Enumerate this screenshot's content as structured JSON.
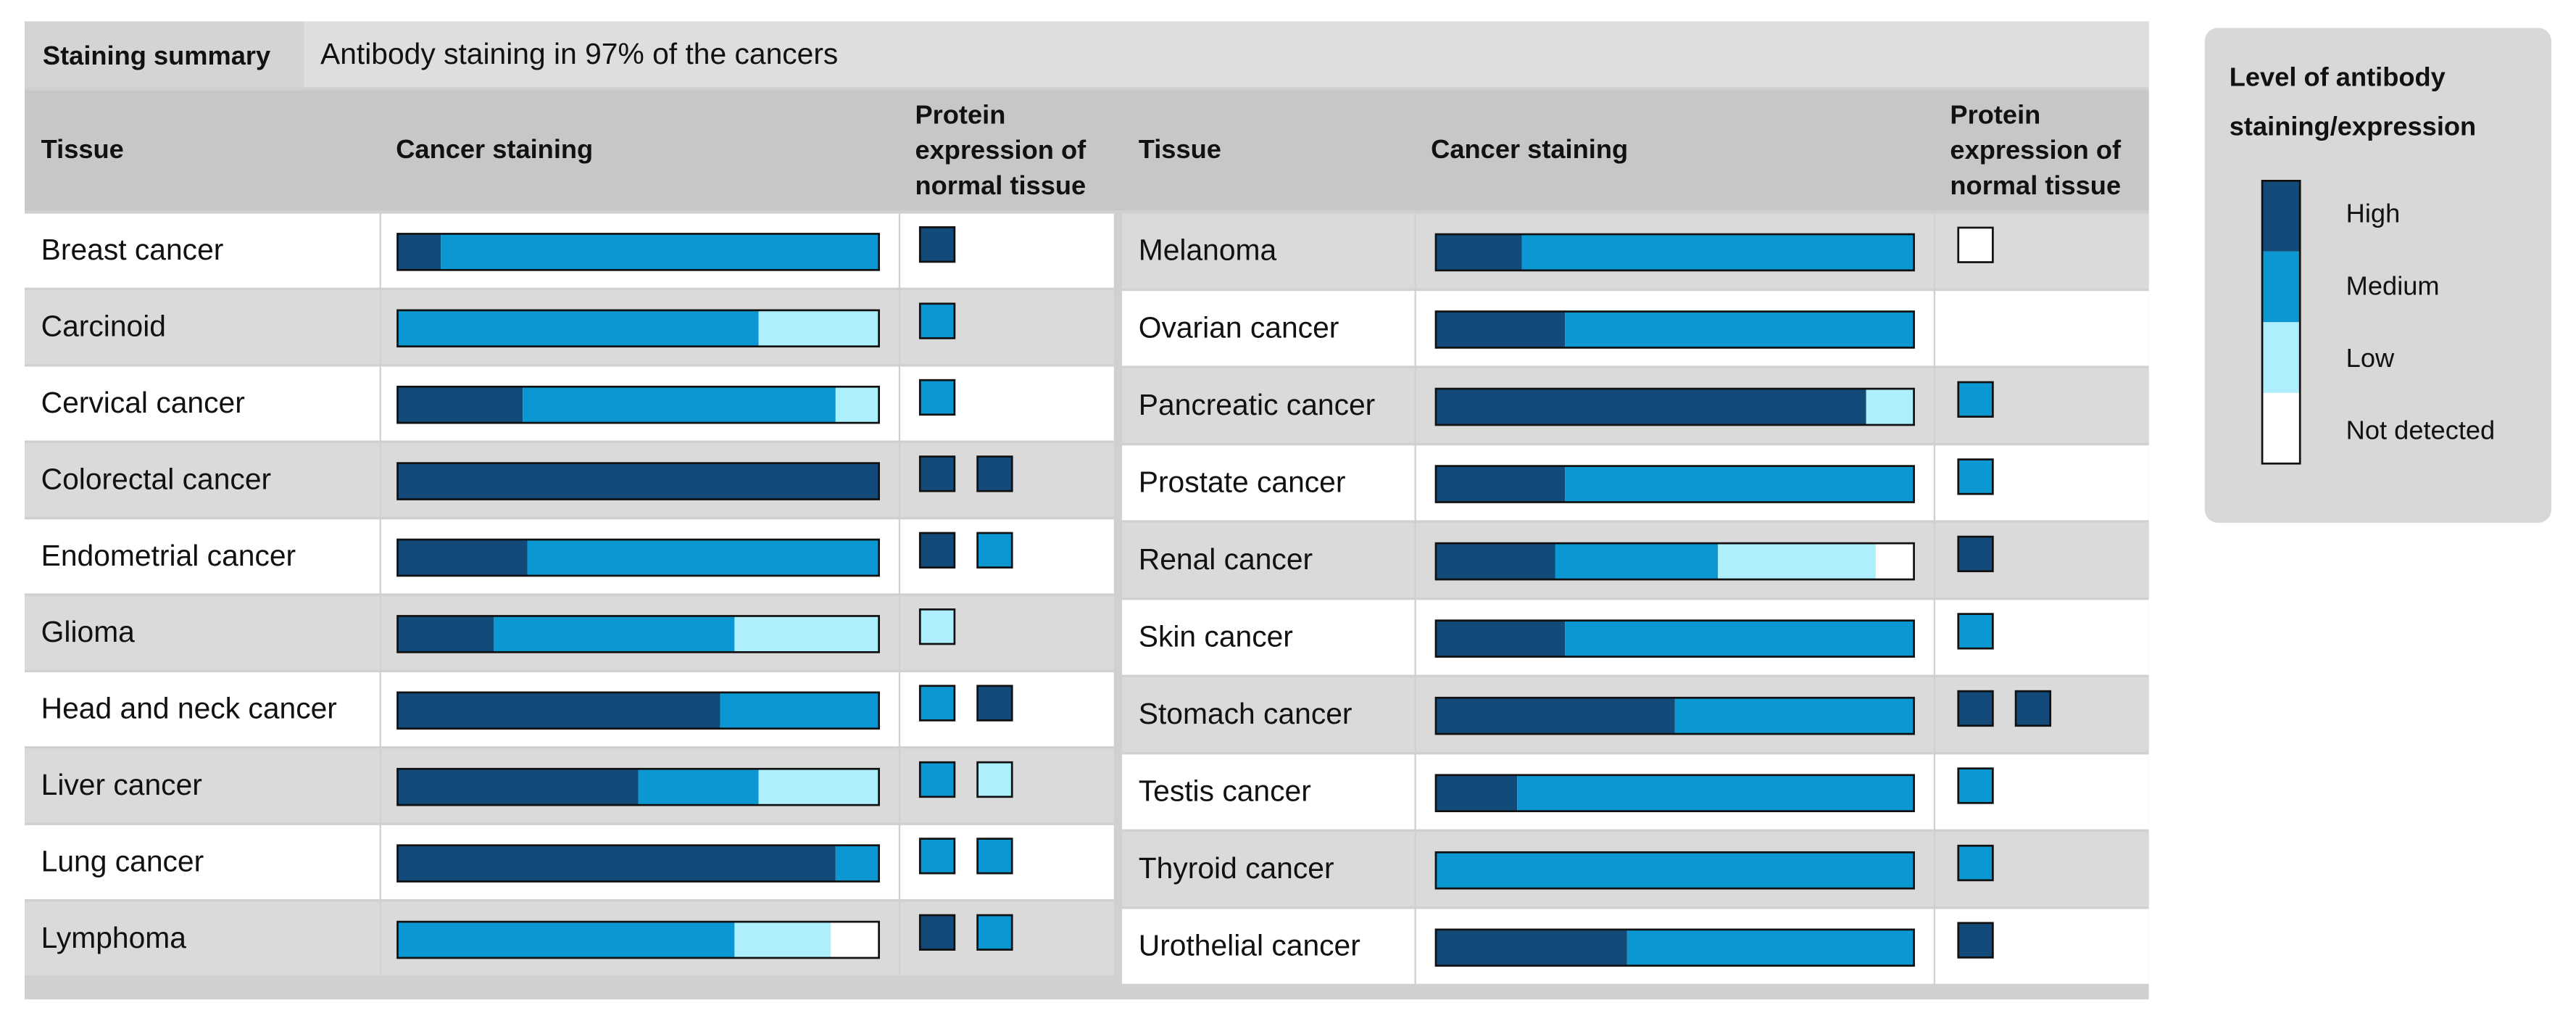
{
  "summary": {
    "label": "Staining summary",
    "text": "Antibody staining in 97% of the cancers"
  },
  "columns": {
    "tissue": "Tissue",
    "staining": "Cancer staining",
    "normal": [
      "Protein",
      "expression of",
      "normal tissue"
    ]
  },
  "legend": {
    "title": [
      "Level of antibody",
      "staining/expression"
    ],
    "levels": [
      {
        "name": "High",
        "color": "#124a7a"
      },
      {
        "name": "Medium",
        "color": "#0b98d2"
      },
      {
        "name": "Low",
        "color": "#adeffc"
      },
      {
        "name": "Not detected",
        "color": "#ffffff"
      }
    ]
  },
  "panels": [
    [
      {
        "tissue": "Breast cancer",
        "staining": [
          9,
          91,
          0,
          0
        ],
        "normal": [
          "High"
        ]
      },
      {
        "tissue": "Carcinoid",
        "staining": [
          0,
          75,
          25,
          0
        ],
        "normal": [
          "Medium"
        ]
      },
      {
        "tissue": "Cervical cancer",
        "staining": [
          26,
          65,
          9,
          0
        ],
        "normal": [
          "Medium"
        ]
      },
      {
        "tissue": "Colorectal cancer",
        "staining": [
          100,
          0,
          0,
          0
        ],
        "normal": [
          "High",
          "High"
        ]
      },
      {
        "tissue": "Endometrial cancer",
        "staining": [
          27,
          73,
          0,
          0
        ],
        "normal": [
          "High",
          "Medium"
        ]
      },
      {
        "tissue": "Glioma",
        "staining": [
          20,
          50,
          30,
          0
        ],
        "normal": [
          "Low"
        ]
      },
      {
        "tissue": "Head and neck cancer",
        "staining": [
          67,
          33,
          0,
          0
        ],
        "normal": [
          "Medium",
          "High"
        ]
      },
      {
        "tissue": "Liver cancer",
        "staining": [
          50,
          25,
          25,
          0
        ],
        "normal": [
          "Medium",
          "Low"
        ]
      },
      {
        "tissue": "Lung cancer",
        "staining": [
          91,
          9,
          0,
          0
        ],
        "normal": [
          "Medium",
          "Medium"
        ]
      },
      {
        "tissue": "Lymphoma",
        "staining": [
          0,
          70,
          20,
          10
        ],
        "normal": [
          "High",
          "Medium"
        ]
      }
    ],
    [
      {
        "tissue": "Melanoma",
        "staining": [
          18,
          82,
          0,
          0
        ],
        "normal": [
          "Not detected"
        ]
      },
      {
        "tissue": "Ovarian cancer",
        "staining": [
          27,
          73,
          0,
          0
        ],
        "normal": []
      },
      {
        "tissue": "Pancreatic cancer",
        "staining": [
          90,
          0,
          10,
          0
        ],
        "normal": [
          "Medium"
        ]
      },
      {
        "tissue": "Prostate cancer",
        "staining": [
          27,
          73,
          0,
          0
        ],
        "normal": [
          "Medium"
        ]
      },
      {
        "tissue": "Renal cancer",
        "staining": [
          25,
          34,
          33,
          8
        ],
        "normal": [
          "High"
        ]
      },
      {
        "tissue": "Skin cancer",
        "staining": [
          27,
          73,
          0,
          0
        ],
        "normal": [
          "Medium"
        ]
      },
      {
        "tissue": "Stomach cancer",
        "staining": [
          50,
          50,
          0,
          0
        ],
        "normal": [
          "High",
          "High"
        ]
      },
      {
        "tissue": "Testis cancer",
        "staining": [
          17,
          83,
          0,
          0
        ],
        "normal": [
          "Medium"
        ]
      },
      {
        "tissue": "Thyroid cancer",
        "staining": [
          0,
          100,
          0,
          0
        ],
        "normal": [
          "Medium"
        ]
      },
      {
        "tissue": "Urothelial cancer",
        "staining": [
          40,
          60,
          0,
          0
        ],
        "normal": [
          "High"
        ]
      }
    ]
  ]
}
